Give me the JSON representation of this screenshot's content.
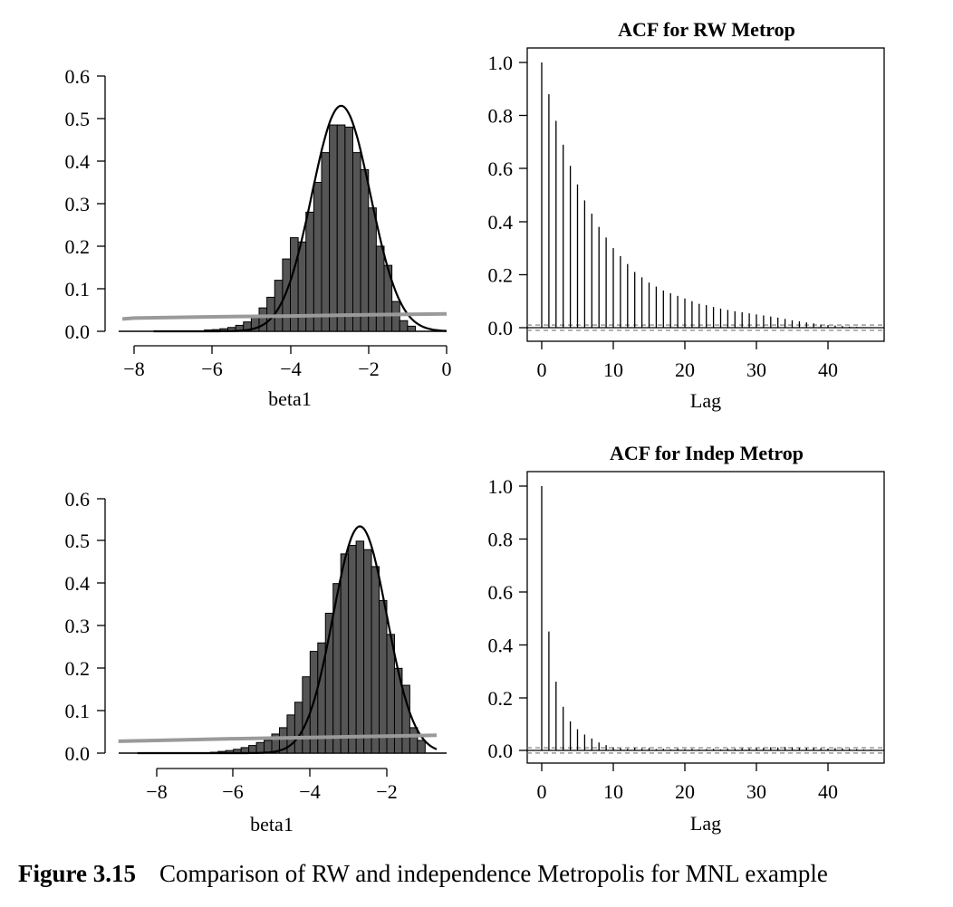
{
  "caption": {
    "figure_label": "Figure 3.15",
    "text": "Comparison of RW and independence Metropolis for MNL example"
  },
  "colors": {
    "bar_fill": "#555555",
    "density_line": "#000000",
    "prior_line": "#9a9a9a",
    "ci_line": "#777777"
  },
  "chart_data": [
    {
      "type": "bar",
      "subtype": "histogram_with_density",
      "title": "",
      "xlabel": "beta1",
      "ylabel": "",
      "xlim": [
        -8.3,
        0
      ],
      "ylim": [
        0,
        0.6
      ],
      "x_ticks": [
        "−8",
        "−6",
        "−4",
        "−2",
        "0"
      ],
      "y_ticks": [
        "0.0",
        "0.1",
        "0.2",
        "0.3",
        "0.4",
        "0.5",
        "0.6"
      ],
      "bin_width": 0.2,
      "bin_left": [
        -6.2,
        -6.0,
        -5.8,
        -5.6,
        -5.4,
        -5.2,
        -5.0,
        -4.8,
        -4.6,
        -4.4,
        -4.2,
        -4.0,
        -3.8,
        -3.6,
        -3.4,
        -3.2,
        -3.0,
        -2.8,
        -2.6,
        -2.4,
        -2.2,
        -2.0,
        -1.8,
        -1.6,
        -1.4,
        -1.2,
        -1.0
      ],
      "values": [
        0.003,
        0.004,
        0.006,
        0.009,
        0.014,
        0.022,
        0.035,
        0.055,
        0.08,
        0.12,
        0.17,
        0.22,
        0.21,
        0.28,
        0.35,
        0.42,
        0.485,
        0.485,
        0.48,
        0.42,
        0.38,
        0.29,
        0.2,
        0.155,
        0.07,
        0.025,
        0.012
      ],
      "series": [
        {
          "name": "",
          "kind": "density",
          "mean": -2.7,
          "sd": 0.75,
          "peak": 0.53,
          "x_range": [
            -7.5,
            0
          ],
          "color": "#000000"
        },
        {
          "name": "",
          "kind": "prior",
          "x": [
            -8.3,
            -8,
            -6,
            -4,
            -2,
            0
          ],
          "y": [
            0.029,
            0.031,
            0.034,
            0.036,
            0.039,
            0.041
          ],
          "color": "#9a9a9a"
        }
      ]
    },
    {
      "type": "bar",
      "subtype": "acf",
      "title": "ACF for RW Metrop",
      "xlabel": "Lag",
      "ylabel": "",
      "xlim": [
        -2,
        48
      ],
      "ylim": [
        -0.05,
        1.05
      ],
      "x_ticks": [
        "0",
        "10",
        "20",
        "30",
        "40"
      ],
      "y_ticks": [
        "0.0",
        "0.2",
        "0.4",
        "0.6",
        "0.8",
        "1.0"
      ],
      "confidence_band": 0.01,
      "lags": [
        0,
        1,
        2,
        3,
        4,
        5,
        6,
        7,
        8,
        9,
        10,
        11,
        12,
        13,
        14,
        15,
        16,
        17,
        18,
        19,
        20,
        21,
        22,
        23,
        24,
        25,
        26,
        27,
        28,
        29,
        30,
        31,
        32,
        33,
        34,
        35,
        36,
        37,
        38,
        39,
        40,
        41,
        42,
        43,
        44,
        45,
        46,
        47
      ],
      "values": [
        1.0,
        0.88,
        0.78,
        0.69,
        0.61,
        0.54,
        0.48,
        0.43,
        0.38,
        0.34,
        0.3,
        0.27,
        0.24,
        0.21,
        0.19,
        0.17,
        0.155,
        0.14,
        0.13,
        0.12,
        0.11,
        0.1,
        0.09,
        0.085,
        0.078,
        0.072,
        0.067,
        0.062,
        0.058,
        0.054,
        0.05,
        0.046,
        0.042,
        0.038,
        0.033,
        0.028,
        0.024,
        0.02,
        0.016,
        0.012,
        0.01,
        0.008,
        0.006,
        0.004,
        0.003,
        0.002,
        0.002,
        0.001
      ]
    },
    {
      "type": "bar",
      "subtype": "histogram_with_density",
      "title": "",
      "xlabel": "beta1",
      "ylabel": "",
      "xlim": [
        -9,
        -0.5
      ],
      "ylim": [
        0,
        0.6
      ],
      "x_ticks": [
        "−8",
        "−6",
        "−4",
        "−2"
      ],
      "y_ticks": [
        "0.0",
        "0.1",
        "0.2",
        "0.3",
        "0.4",
        "0.5",
        "0.6"
      ],
      "bin_width": 0.2,
      "bin_left": [
        -6.6,
        -6.4,
        -6.2,
        -6.0,
        -5.8,
        -5.6,
        -5.4,
        -5.2,
        -5.0,
        -4.8,
        -4.6,
        -4.4,
        -4.2,
        -4.0,
        -3.8,
        -3.6,
        -3.4,
        -3.2,
        -3.0,
        -2.8,
        -2.6,
        -2.4,
        -2.2,
        -2.0,
        -1.8,
        -1.6,
        -1.4,
        -1.2
      ],
      "values": [
        0.002,
        0.004,
        0.006,
        0.009,
        0.013,
        0.018,
        0.025,
        0.03,
        0.045,
        0.06,
        0.09,
        0.12,
        0.18,
        0.24,
        0.26,
        0.33,
        0.4,
        0.47,
        0.49,
        0.5,
        0.48,
        0.44,
        0.36,
        0.28,
        0.2,
        0.16,
        0.06,
        0.03
      ],
      "series": [
        {
          "name": "",
          "kind": "density",
          "mean": -2.7,
          "sd": 0.7,
          "peak": 0.535,
          "x_range": [
            -8.5,
            -0.7
          ],
          "color": "#000000"
        },
        {
          "name": "",
          "kind": "prior",
          "x": [
            -9,
            -8,
            -6,
            -4,
            -2,
            -0.7
          ],
          "y": [
            0.028,
            0.03,
            0.034,
            0.037,
            0.04,
            0.042
          ],
          "color": "#9a9a9a"
        }
      ]
    },
    {
      "type": "bar",
      "subtype": "acf",
      "title": "ACF for Indep Metrop",
      "xlabel": "Lag",
      "ylabel": "",
      "xlim": [
        -2,
        48
      ],
      "ylim": [
        -0.05,
        1.05
      ],
      "x_ticks": [
        "0",
        "10",
        "20",
        "30",
        "40"
      ],
      "y_ticks": [
        "0.0",
        "0.2",
        "0.4",
        "0.6",
        "0.8",
        "1.0"
      ],
      "confidence_band": 0.01,
      "lags": [
        0,
        1,
        2,
        3,
        4,
        5,
        6,
        7,
        8,
        9,
        10,
        11,
        12,
        13,
        14,
        15,
        16,
        17,
        18,
        19,
        20,
        21,
        22,
        23,
        24,
        25,
        26,
        27,
        28,
        29,
        30,
        31,
        32,
        33,
        34,
        35,
        36,
        37,
        38,
        39,
        40,
        41,
        42,
        43,
        44,
        45,
        46,
        47
      ],
      "values": [
        1.0,
        0.45,
        0.26,
        0.165,
        0.11,
        0.08,
        0.06,
        0.045,
        0.03,
        0.02,
        0.012,
        0.008,
        0.006,
        0.01,
        0.007,
        0.009,
        0.005,
        0.006,
        0.004,
        0.007,
        0.005,
        0.006,
        0.004,
        0.005,
        0.006,
        0.004,
        0.007,
        0.006,
        0.008,
        0.007,
        0.009,
        0.01,
        0.012,
        0.011,
        0.013,
        0.012,
        0.01,
        0.009,
        0.01,
        0.008,
        0.007,
        0.009,
        0.008,
        0.006,
        0.005,
        0.004,
        0.003,
        0.002
      ]
    }
  ]
}
